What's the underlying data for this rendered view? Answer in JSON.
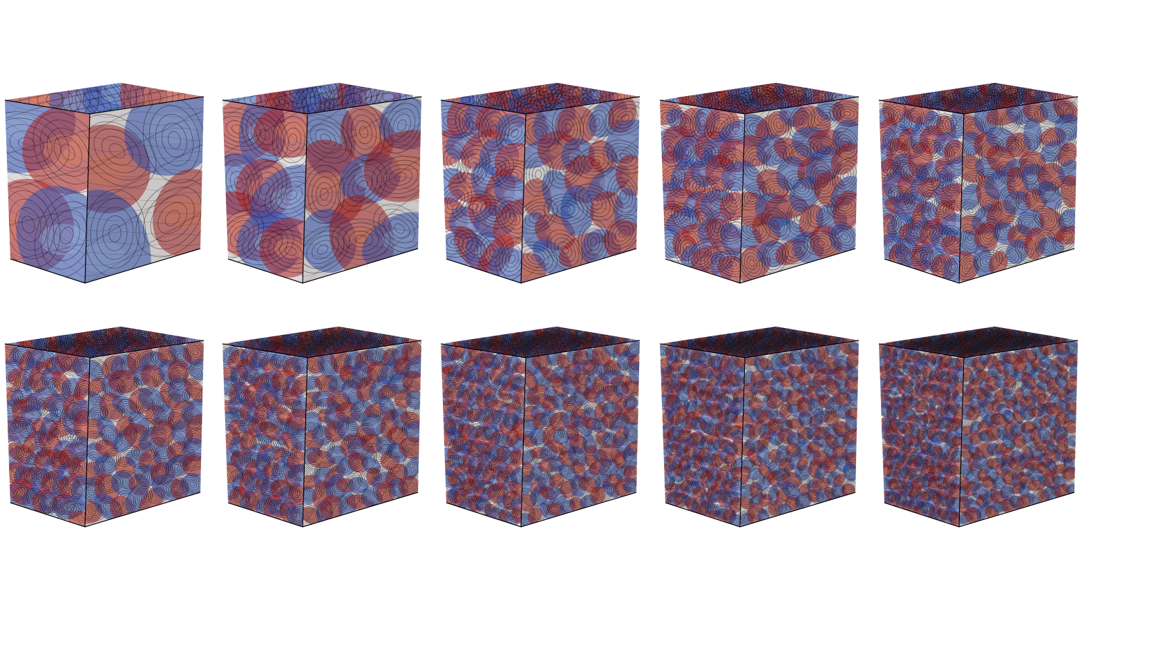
{
  "figure": {
    "description_visible_text": "",
    "rows": [
      {
        "cubes": [
          {
            "id": "r1c1",
            "pattern_frequency": 1,
            "colormap": "coolwarm"
          },
          {
            "id": "r1c2",
            "pattern_frequency": 2,
            "colormap": "coolwarm"
          },
          {
            "id": "r1c3",
            "pattern_frequency": 3,
            "colormap": "coolwarm"
          },
          {
            "id": "r1c4",
            "pattern_frequency": 4,
            "colormap": "coolwarm"
          },
          {
            "id": "r1c5",
            "pattern_frequency": 5,
            "colormap": "coolwarm"
          }
        ]
      },
      {
        "cubes": [
          {
            "id": "r2c1",
            "pattern_frequency": 6,
            "colormap": "coolwarm"
          },
          {
            "id": "r2c2",
            "pattern_frequency": 7,
            "colormap": "coolwarm"
          },
          {
            "id": "r2c3",
            "pattern_frequency": 8,
            "colormap": "coolwarm"
          },
          {
            "id": "r2c4",
            "pattern_frequency": 9,
            "colormap": "coolwarm"
          },
          {
            "id": "r2c5",
            "pattern_frequency": 10,
            "colormap": "coolwarm"
          }
        ]
      }
    ]
  },
  "colors": {
    "background": "#ffffff",
    "red": "#c0292b",
    "light_red": "#e98a6e",
    "white": "#f2efee",
    "light_blue": "#9cb6e8",
    "blue": "#3d5fc8",
    "streamline": "#111111",
    "edge": "#000000"
  }
}
